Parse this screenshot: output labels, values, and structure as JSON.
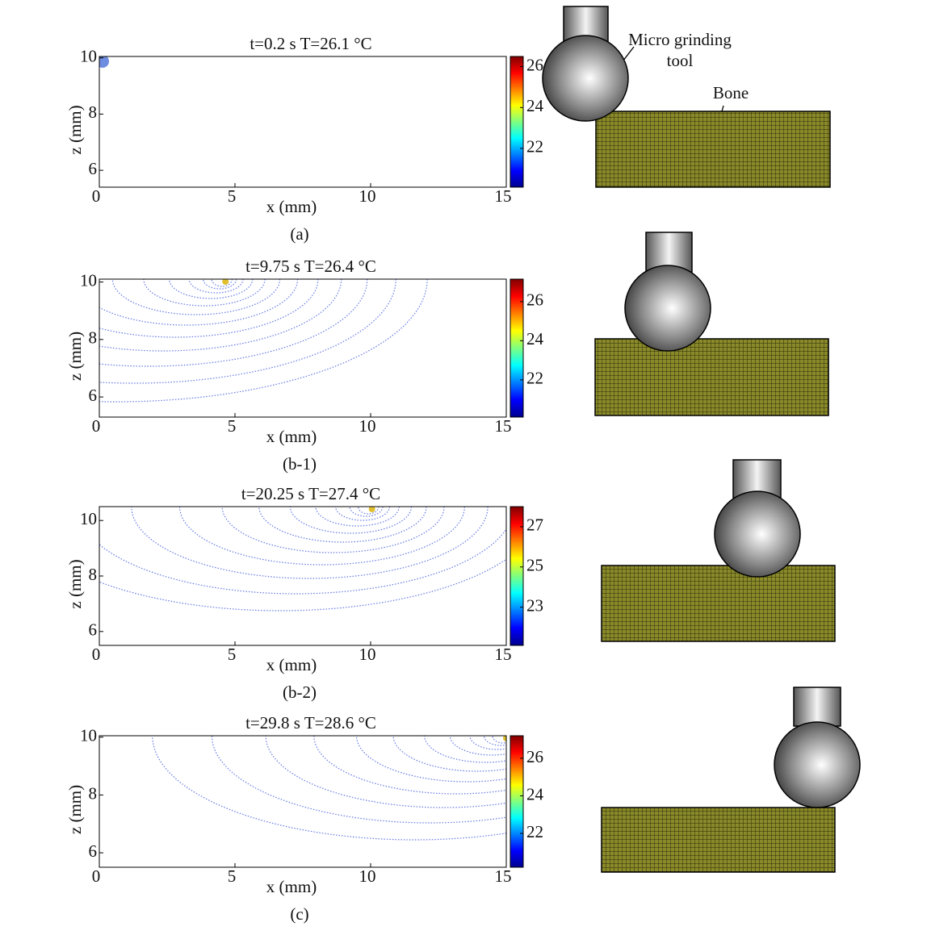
{
  "chart_data": [
    {
      "type": "contour",
      "title": "t=0.2 s  T=26.1 °C",
      "xlabel": "x (mm)",
      "ylabel": "z (mm)",
      "caption": "(a)",
      "xlim": [
        0,
        15
      ],
      "xticks": [
        0,
        5,
        10,
        15
      ],
      "ylim": [
        5.4,
        10.05
      ],
      "yticks": [
        6,
        8,
        10
      ],
      "clim": [
        20.1,
        26.5
      ],
      "cticks": [
        22,
        24,
        26
      ]
    },
    {
      "type": "contour",
      "title": "t=9.75 s  T=26.4 °C",
      "xlabel": "x (mm)",
      "ylabel": "z (mm)",
      "caption": "(b-1)",
      "xlim": [
        0,
        15
      ],
      "xticks": [
        0,
        5,
        10,
        15
      ],
      "ylim": [
        5.3,
        10.1
      ],
      "yticks": [
        6,
        8,
        10
      ],
      "clim": [
        20.1,
        27.15
      ],
      "cticks": [
        22,
        24,
        26
      ]
    },
    {
      "type": "contour",
      "title": "t=20.25 s  T=27.4 °C",
      "xlabel": "x (mm)",
      "ylabel": "z (mm)",
      "caption": "(b-2)",
      "xlim": [
        0,
        15
      ],
      "xticks": [
        0,
        5,
        10,
        15
      ],
      "ylim": [
        5.5,
        10.5
      ],
      "yticks": [
        6,
        8,
        10
      ],
      "clim": [
        21.1,
        28.0
      ],
      "cticks": [
        23,
        25,
        27
      ]
    },
    {
      "type": "contour",
      "title": "t=29.8 s  T=28.6 °C",
      "xlabel": "x (mm)",
      "ylabel": "z (mm)",
      "caption": "(c)",
      "xlim": [
        0,
        15
      ],
      "xticks": [
        0,
        5,
        10,
        15
      ],
      "ylim": [
        5.5,
        10.05
      ],
      "yticks": [
        6,
        8,
        10
      ],
      "clim": [
        20.2,
        27.2
      ],
      "cticks": [
        22,
        24,
        26
      ]
    }
  ],
  "schematic": {
    "tool_label": [
      "Micro grinding",
      "tool"
    ],
    "bone_label": "Bone"
  }
}
